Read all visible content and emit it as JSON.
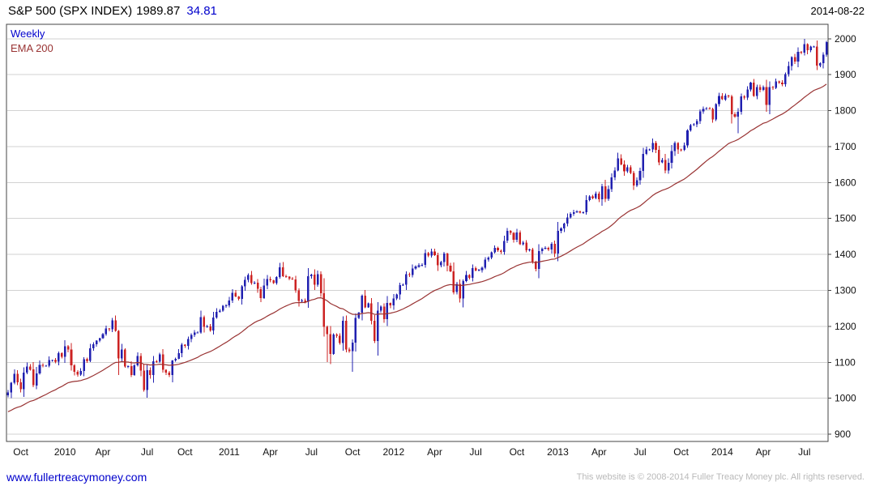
{
  "header": {
    "instrument": "S&P 500 (SPX INDEX)",
    "last_price": "1989.87",
    "change": "34.81",
    "date": "2014-08-22"
  },
  "legend": {
    "series_label": "Weekly",
    "overlay_label": "EMA 200"
  },
  "footer": {
    "link": "www.fullertreacymoney.com",
    "copyright": "This website is © 2008-2014 Fuller Treacy Money plc. All rights reserved."
  },
  "colors": {
    "up_candle": "#2020b0",
    "down_candle": "#cc2222",
    "ema_line": "#993333",
    "grid": "#d2d2d2",
    "border": "#444444",
    "accent_blue": "#0000cc",
    "axis_text": "#111111",
    "copyright_text": "#b9b9b9"
  },
  "chart_data": {
    "type": "candlestick",
    "title": "S&P 500 (SPX INDEX) Weekly with EMA 200",
    "interval": "Weekly",
    "ylim": [
      880,
      2040
    ],
    "y_ticks": [
      900,
      1000,
      1100,
      1200,
      1300,
      1400,
      1500,
      1600,
      1700,
      1800,
      1900,
      2000
    ],
    "grid": "horizontal-only",
    "legend_position": "top-left-inside",
    "x_ticks": [
      {
        "label": "Oct",
        "week": 4
      },
      {
        "label": "2010",
        "week": 18
      },
      {
        "label": "Apr",
        "week": 30
      },
      {
        "label": "Jul",
        "week": 44
      },
      {
        "label": "Oct",
        "week": 56
      },
      {
        "label": "2011",
        "week": 70
      },
      {
        "label": "Apr",
        "week": 83
      },
      {
        "label": "Jul",
        "week": 96
      },
      {
        "label": "Oct",
        "week": 109
      },
      {
        "label": "2012",
        "week": 122
      },
      {
        "label": "Apr",
        "week": 135
      },
      {
        "label": "Jul",
        "week": 148
      },
      {
        "label": "Oct",
        "week": 161
      },
      {
        "label": "2013",
        "week": 174
      },
      {
        "label": "Apr",
        "week": 187
      },
      {
        "label": "Jul",
        "week": 200
      },
      {
        "label": "Oct",
        "week": 213
      },
      {
        "label": "2014",
        "week": 226
      },
      {
        "label": "Apr",
        "week": 239
      },
      {
        "label": "Jul",
        "week": 252
      }
    ],
    "weekly_close": [
      1016,
      1043,
      1068,
      1044,
      1025,
      1071,
      1088,
      1080,
      1036,
      1069,
      1093,
      1091,
      1091,
      1106,
      1106,
      1102,
      1126,
      1115,
      1145,
      1136,
      1092,
      1074,
      1066,
      1076,
      1109,
      1104,
      1139,
      1150,
      1160,
      1167,
      1178,
      1194,
      1192,
      1217,
      1187,
      1111,
      1136,
      1088,
      1089,
      1065,
      1092,
      1118,
      1077,
      1023,
      1078,
      1065,
      1103,
      1102,
      1122,
      1079,
      1072,
      1065,
      1105,
      1110,
      1126,
      1149,
      1146,
      1165,
      1176,
      1183,
      1183,
      1226,
      1199,
      1200,
      1189,
      1225,
      1240,
      1244,
      1257,
      1258,
      1272,
      1293,
      1283,
      1276,
      1311,
      1329,
      1343,
      1320,
      1321,
      1304,
      1279,
      1314,
      1332,
      1328,
      1320,
      1337,
      1364,
      1340,
      1338,
      1333,
      1331,
      1300,
      1271,
      1272,
      1268,
      1339,
      1344,
      1316,
      1345,
      1292,
      1199,
      1179,
      1123,
      1177,
      1174,
      1154,
      1216,
      1136,
      1131,
      1155,
      1224,
      1238,
      1285,
      1253,
      1264,
      1216,
      1159,
      1244,
      1255,
      1220,
      1265,
      1258,
      1278,
      1289,
      1315,
      1316,
      1345,
      1343,
      1361,
      1366,
      1370,
      1371,
      1404,
      1397,
      1408,
      1398,
      1370,
      1379,
      1403,
      1369,
      1353,
      1295,
      1318,
      1278,
      1326,
      1343,
      1335,
      1362,
      1355,
      1357,
      1363,
      1386,
      1391,
      1406,
      1418,
      1411,
      1407,
      1438,
      1466,
      1460,
      1441,
      1461,
      1429,
      1433,
      1412,
      1414,
      1380,
      1360,
      1409,
      1416,
      1418,
      1414,
      1430,
      1403,
      1466,
      1472,
      1486,
      1503,
      1513,
      1518,
      1520,
      1516,
      1518,
      1551,
      1561,
      1557,
      1569,
      1553,
      1589,
      1555,
      1582,
      1614,
      1634,
      1667,
      1650,
      1631,
      1643,
      1627,
      1592,
      1606,
      1632,
      1680,
      1692,
      1692,
      1710,
      1691,
      1656,
      1663,
      1633,
      1655,
      1688,
      1710,
      1692,
      1691,
      1703,
      1745,
      1760,
      1762,
      1771,
      1798,
      1805,
      1806,
      1805,
      1775,
      1818,
      1841,
      1831,
      1842,
      1839,
      1790,
      1783,
      1797,
      1839,
      1836,
      1859,
      1878,
      1841,
      1866,
      1858,
      1865,
      1816,
      1865,
      1863,
      1881,
      1878,
      1873,
      1901,
      1924,
      1949,
      1936,
      1963,
      1961,
      1985,
      1968,
      1978,
      1978,
      1925,
      1932,
      1955,
      1990
    ],
    "ema": {
      "label": "EMA 200",
      "span_weeks": 40,
      "seed": 960
    },
    "wick_low_overrides": {
      "35": 1065,
      "101": 1101,
      "109": 1074,
      "143": 1266,
      "231": 1737
    }
  }
}
